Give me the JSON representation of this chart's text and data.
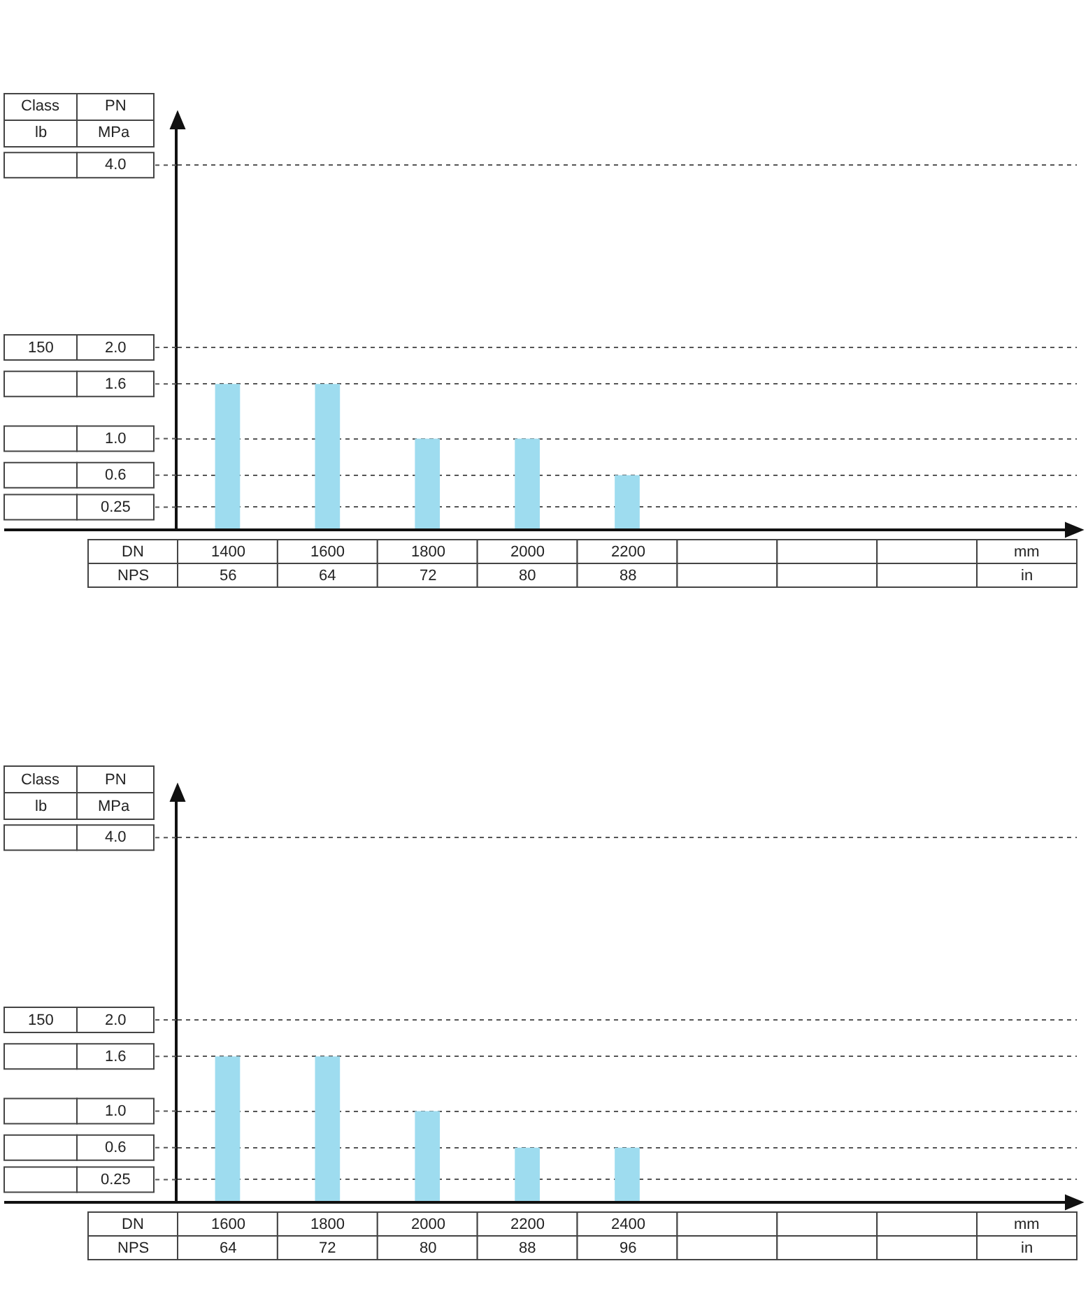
{
  "chart_data": [
    {
      "type": "bar",
      "categories": [
        "1400",
        "1600",
        "1800",
        "2000",
        "2200",
        null,
        null,
        null
      ],
      "values": [
        1.6,
        1.6,
        1.0,
        1.0,
        0.6,
        null,
        null,
        null
      ],
      "color": "#9edcef",
      "ylim": [
        0,
        4.4
      ],
      "yticks": [
        0.25,
        0.6,
        {
          "value": 1,
          "label": "1.0"
        },
        1.6,
        {
          "value": 2,
          "label": "2.0"
        },
        {
          "value": 4,
          "label": "4.0"
        }
      ],
      "grid": "y",
      "annotations": [
        "Class",
        "PN",
        "lb",
        "MPa",
        "150",
        "DN",
        "NPS",
        "mm",
        "in",
        "56",
        "64",
        "72",
        "80",
        "88"
      ]
    },
    {
      "type": "bar",
      "categories": [
        "1600",
        "1800",
        "2000",
        "2200",
        "2400",
        null,
        null,
        null
      ],
      "values": [
        1.6,
        1.6,
        1.0,
        0.6,
        0.6,
        null,
        null,
        null
      ],
      "color": "#9edcef",
      "ylim": [
        0,
        4.4
      ],
      "yticks": [
        0.25,
        0.6,
        {
          "value": 1,
          "label": "1.0"
        },
        1.6,
        {
          "value": 2,
          "label": "2.0"
        },
        {
          "value": 4,
          "label": "4.0"
        }
      ],
      "grid": "y",
      "annotations": [
        "Class",
        "PN",
        "lb",
        "MPa",
        "150",
        "DN",
        "NPS",
        "mm",
        "in",
        "64",
        "72",
        "80",
        "88",
        "96"
      ]
    }
  ]
}
